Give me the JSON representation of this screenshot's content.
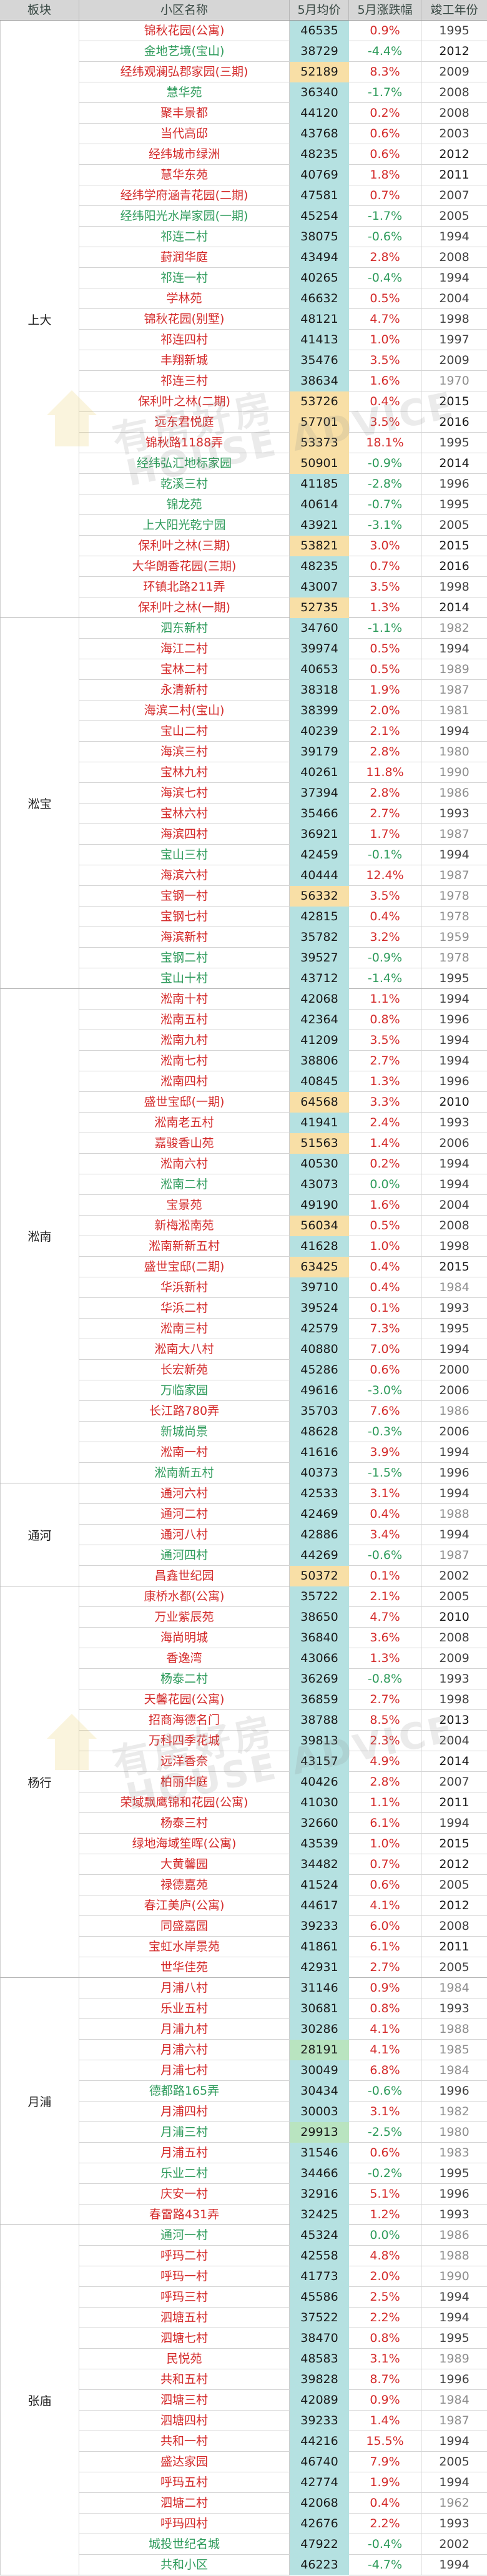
{
  "header": {
    "district": "板块",
    "name": "小区名称",
    "price": "5月均价",
    "change": "5月涨跌幅",
    "year": "竣工年份"
  },
  "watermark": {
    "cn": "有房好房",
    "en": "HOUSE ADVICE"
  },
  "colors": {
    "header_bg": "#d6d6d6",
    "price_bg": "#b5e1e1",
    "price_high_bg": "#f8dfa6",
    "price_low_bg": "#b9e4c0",
    "rise": "#d42a2a",
    "fall": "#2e9b5b"
  },
  "sections": [
    {
      "district": "上大",
      "rows": [
        [
          "锦秋花园(公寓)",
          "46535",
          "0.9%",
          "1995",
          "n"
        ],
        [
          "金地艺境(宝山)",
          "38729",
          "-4.4%",
          "2012",
          "n"
        ],
        [
          "经纬观澜弘郡家园(三期)",
          "52189",
          "8.3%",
          "2009",
          "h"
        ],
        [
          "慧华苑",
          "36340",
          "-1.7%",
          "2008",
          "n"
        ],
        [
          "聚丰景都",
          "44120",
          "0.2%",
          "2008",
          "n"
        ],
        [
          "当代高邸",
          "43768",
          "0.6%",
          "2003",
          "n"
        ],
        [
          "经纬城市绿洲",
          "48235",
          "0.6%",
          "2012",
          "n"
        ],
        [
          "慧华东苑",
          "40769",
          "1.8%",
          "2011",
          "n"
        ],
        [
          "经纬学府涵青花园(二期)",
          "47581",
          "0.7%",
          "2007",
          "n"
        ],
        [
          "经纬阳光水岸家园(一期)",
          "45254",
          "-1.7%",
          "2005",
          "n"
        ],
        [
          "祁连二村",
          "38075",
          "-0.6%",
          "1994",
          "n"
        ],
        [
          "葑润华庭",
          "43494",
          "2.8%",
          "2008",
          "n"
        ],
        [
          "祁连一村",
          "40265",
          "-0.4%",
          "1994",
          "n"
        ],
        [
          "学林苑",
          "46632",
          "0.5%",
          "2004",
          "n"
        ],
        [
          "锦秋花园(别墅)",
          "48121",
          "4.7%",
          "1998",
          "n"
        ],
        [
          "祁连四村",
          "41413",
          "1.0%",
          "1997",
          "n"
        ],
        [
          "丰翔新城",
          "35476",
          "3.5%",
          "2009",
          "n"
        ],
        [
          "祁连三村",
          "38634",
          "1.6%",
          "1970",
          "n"
        ],
        [
          "保利叶之林(二期)",
          "53726",
          "0.4%",
          "2015",
          "h"
        ],
        [
          "远东君悦庭",
          "57701",
          "3.5%",
          "2016",
          "h"
        ],
        [
          "锦秋路1188弄",
          "53373",
          "18.1%",
          "1995",
          "h"
        ],
        [
          "经纬弘汇地标家园",
          "50901",
          "-0.9%",
          "2014",
          "h"
        ],
        [
          "乾溪三村",
          "41185",
          "-2.8%",
          "1996",
          "n"
        ],
        [
          "锦龙苑",
          "40614",
          "-0.7%",
          "1995",
          "n"
        ],
        [
          "上大阳光乾宁园",
          "43921",
          "-3.1%",
          "2005",
          "n"
        ],
        [
          "保利叶之林(三期)",
          "53821",
          "3.0%",
          "2015",
          "h"
        ],
        [
          "大华朗香花园(三期)",
          "48235",
          "0.7%",
          "2016",
          "n"
        ],
        [
          "环镇北路211弄",
          "43007",
          "3.5%",
          "1998",
          "n"
        ],
        [
          "保利叶之林(一期)",
          "52735",
          "1.3%",
          "2014",
          "h"
        ]
      ]
    },
    {
      "district": "淞宝",
      "rows": [
        [
          "泗东新村",
          "34760",
          "-1.1%",
          "1982",
          "n"
        ],
        [
          "海江二村",
          "39974",
          "0.5%",
          "1994",
          "n"
        ],
        [
          "宝林二村",
          "40653",
          "0.5%",
          "1989",
          "n"
        ],
        [
          "永清新村",
          "38318",
          "1.9%",
          "1987",
          "n"
        ],
        [
          "海滨二村(宝山)",
          "38399",
          "2.0%",
          "1981",
          "n"
        ],
        [
          "宝山二村",
          "40239",
          "2.1%",
          "1994",
          "n"
        ],
        [
          "海滨三村",
          "39179",
          "2.8%",
          "1980",
          "n"
        ],
        [
          "宝林九村",
          "40261",
          "11.8%",
          "1990",
          "n"
        ],
        [
          "海滨七村",
          "37394",
          "2.8%",
          "1986",
          "n"
        ],
        [
          "宝林六村",
          "35466",
          "2.7%",
          "1993",
          "n"
        ],
        [
          "海滨四村",
          "36921",
          "1.7%",
          "1987",
          "n"
        ],
        [
          "宝山三村",
          "42459",
          "-0.1%",
          "1994",
          "n"
        ],
        [
          "海滨六村",
          "40444",
          "12.4%",
          "1987",
          "n"
        ],
        [
          "宝钢一村",
          "56332",
          "3.5%",
          "1978",
          "h"
        ],
        [
          "宝钢七村",
          "42815",
          "0.4%",
          "1978",
          "n"
        ],
        [
          "海滨新村",
          "35782",
          "3.2%",
          "1959",
          "n"
        ],
        [
          "宝钢二村",
          "39527",
          "-0.9%",
          "1978",
          "n"
        ],
        [
          "宝山十村",
          "43712",
          "-1.4%",
          "1995",
          "n"
        ]
      ]
    },
    {
      "district": "淞南",
      "rows": [
        [
          "淞南十村",
          "42068",
          "1.1%",
          "1994",
          "n"
        ],
        [
          "淞南五村",
          "42364",
          "0.8%",
          "1996",
          "n"
        ],
        [
          "淞南九村",
          "41209",
          "3.5%",
          "1994",
          "n"
        ],
        [
          "淞南七村",
          "38806",
          "2.7%",
          "1994",
          "n"
        ],
        [
          "淞南四村",
          "40845",
          "1.3%",
          "1996",
          "n"
        ],
        [
          "盛世宝邸(一期)",
          "64568",
          "3.3%",
          "2010",
          "h"
        ],
        [
          "淞南老五村",
          "41941",
          "2.4%",
          "1993",
          "n"
        ],
        [
          "嘉骏香山苑",
          "51563",
          "1.4%",
          "2006",
          "h"
        ],
        [
          "淞南六村",
          "40530",
          "0.2%",
          "1994",
          "n"
        ],
        [
          "淞南二村",
          "43073",
          "0.0%",
          "1994",
          "n"
        ],
        [
          "宝景苑",
          "49190",
          "1.6%",
          "2004",
          "n"
        ],
        [
          "新梅淞南苑",
          "56034",
          "0.5%",
          "2008",
          "h"
        ],
        [
          "淞南新新五村",
          "41628",
          "1.0%",
          "1998",
          "n"
        ],
        [
          "盛世宝邸(二期)",
          "63425",
          "0.4%",
          "2015",
          "h"
        ],
        [
          "华浜新村",
          "39710",
          "0.4%",
          "1984",
          "n"
        ],
        [
          "华浜二村",
          "39524",
          "0.1%",
          "1993",
          "n"
        ],
        [
          "淞南三村",
          "42579",
          "7.3%",
          "1995",
          "n"
        ],
        [
          "淞南大八村",
          "40880",
          "7.0%",
          "1994",
          "n"
        ],
        [
          "长宏新苑",
          "45286",
          "0.6%",
          "2000",
          "n"
        ],
        [
          "万临家园",
          "49616",
          "-3.0%",
          "2006",
          "n"
        ],
        [
          "长江路780弄",
          "35703",
          "7.6%",
          "1986",
          "n"
        ],
        [
          "新城尚景",
          "48628",
          "-0.3%",
          "2006",
          "n"
        ],
        [
          "淞南一村",
          "41616",
          "3.9%",
          "1994",
          "n"
        ],
        [
          "淞南新五村",
          "40373",
          "-1.5%",
          "1996",
          "n"
        ]
      ]
    },
    {
      "district": "通河",
      "rows": [
        [
          "通河六村",
          "42533",
          "3.1%",
          "1994",
          "n"
        ],
        [
          "通河二村",
          "42469",
          "0.4%",
          "1988",
          "n"
        ],
        [
          "通河八村",
          "42886",
          "3.4%",
          "1994",
          "n"
        ],
        [
          "通河四村",
          "44269",
          "-0.6%",
          "1987",
          "n"
        ],
        [
          "昌鑫世纪园",
          "50372",
          "0.1%",
          "2002",
          "h"
        ]
      ]
    },
    {
      "district": "杨行",
      "rows": [
        [
          "康桥水都(公寓)",
          "35722",
          "2.1%",
          "2005",
          "n"
        ],
        [
          "万业紫辰苑",
          "38650",
          "4.7%",
          "2010",
          "n"
        ],
        [
          "海尚明城",
          "36840",
          "3.6%",
          "2008",
          "n"
        ],
        [
          "香逸湾",
          "43066",
          "1.3%",
          "2009",
          "n"
        ],
        [
          "杨泰二村",
          "36269",
          "-0.8%",
          "1993",
          "n"
        ],
        [
          "天馨花园(公寓)",
          "36859",
          "2.7%",
          "1998",
          "n"
        ],
        [
          "招商海德名门",
          "38788",
          "8.5%",
          "2013",
          "n"
        ],
        [
          "万科四季花城",
          "39813",
          "2.3%",
          "2004",
          "n"
        ],
        [
          "远洋香奈",
          "43157",
          "4.9%",
          "2014",
          "n"
        ],
        [
          "柏丽华庭",
          "40426",
          "2.8%",
          "2007",
          "n"
        ],
        [
          "荣域飘鹰锦和花园(公寓)",
          "41030",
          "1.1%",
          "2011",
          "n"
        ],
        [
          "杨泰三村",
          "32660",
          "6.1%",
          "1994",
          "n"
        ],
        [
          "绿地海域笙晖(公寓)",
          "43539",
          "1.0%",
          "2015",
          "n"
        ],
        [
          "大黄馨园",
          "34482",
          "0.7%",
          "2012",
          "n"
        ],
        [
          "禄德嘉苑",
          "41524",
          "0.6%",
          "2005",
          "n"
        ],
        [
          "春江美庐(公寓)",
          "44617",
          "4.1%",
          "2012",
          "n"
        ],
        [
          "同盛嘉园",
          "39233",
          "6.0%",
          "2008",
          "n"
        ],
        [
          "宝虹水岸景苑",
          "41861",
          "6.1%",
          "2011",
          "n"
        ],
        [
          "世华佳苑",
          "42931",
          "2.7%",
          "2005",
          "n"
        ]
      ]
    },
    {
      "district": "月浦",
      "rows": [
        [
          "月浦八村",
          "31146",
          "0.9%",
          "1984",
          "n"
        ],
        [
          "乐业五村",
          "30681",
          "0.8%",
          "1993",
          "n"
        ],
        [
          "月浦九村",
          "30286",
          "4.1%",
          "1988",
          "n"
        ],
        [
          "月浦六村",
          "28191",
          "4.1%",
          "1985",
          "l"
        ],
        [
          "月浦七村",
          "30049",
          "6.8%",
          "1984",
          "n"
        ],
        [
          "德都路165弄",
          "30434",
          "-0.6%",
          "1996",
          "n"
        ],
        [
          "月浦四村",
          "30003",
          "3.1%",
          "1982",
          "n"
        ],
        [
          "月浦三村",
          "29913",
          "-2.5%",
          "1980",
          "l"
        ],
        [
          "月浦五村",
          "31546",
          "0.6%",
          "1983",
          "n"
        ],
        [
          "乐业二村",
          "34466",
          "-0.2%",
          "1995",
          "n"
        ],
        [
          "庆安一村",
          "32916",
          "5.1%",
          "1996",
          "n"
        ],
        [
          "春雷路431弄",
          "32425",
          "1.2%",
          "1993",
          "n"
        ]
      ]
    },
    {
      "district": "张庙",
      "rows": [
        [
          "通河一村",
          "45324",
          "0.0%",
          "1986",
          "n"
        ],
        [
          "呼玛二村",
          "42558",
          "4.8%",
          "1988",
          "n"
        ],
        [
          "呼玛一村",
          "41773",
          "2.0%",
          "1990",
          "n"
        ],
        [
          "呼玛三村",
          "45586",
          "2.5%",
          "1994",
          "n"
        ],
        [
          "泗塘五村",
          "37522",
          "2.2%",
          "1994",
          "n"
        ],
        [
          "泗塘七村",
          "38470",
          "0.8%",
          "1995",
          "n"
        ],
        [
          "民悦苑",
          "48583",
          "3.1%",
          "1989",
          "n"
        ],
        [
          "共和五村",
          "39828",
          "8.7%",
          "1996",
          "n"
        ],
        [
          "泗塘三村",
          "42089",
          "0.9%",
          "1984",
          "n"
        ],
        [
          "泗塘四村",
          "39233",
          "1.4%",
          "1987",
          "n"
        ],
        [
          "共和一村",
          "44216",
          "15.5%",
          "1994",
          "n"
        ],
        [
          "盛达家园",
          "46740",
          "7.9%",
          "2005",
          "n"
        ],
        [
          "呼玛五村",
          "42774",
          "1.9%",
          "1994",
          "n"
        ],
        [
          "泗塘二村",
          "42068",
          "0.4%",
          "1962",
          "n"
        ],
        [
          "呼玛四村",
          "42676",
          "2.2%",
          "1993",
          "n"
        ],
        [
          "城投世纪名城",
          "47922",
          "-0.4%",
          "2002",
          "n"
        ],
        [
          "共和小区",
          "46223",
          "-4.7%",
          "1994",
          "n"
        ]
      ]
    }
  ]
}
